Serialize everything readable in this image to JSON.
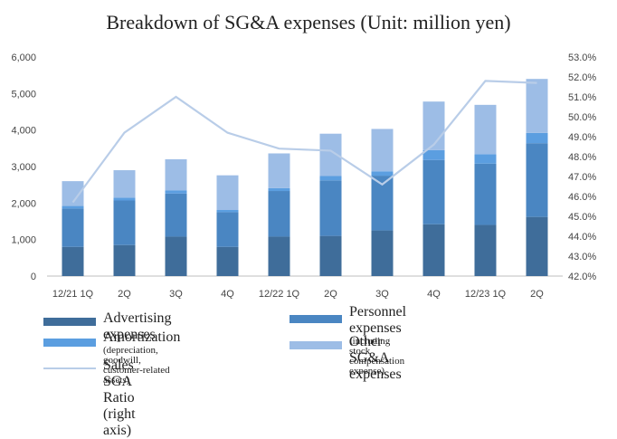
{
  "chart_data": {
    "type": "bar",
    "stacked": true,
    "title": "Breakdown of SG&A expenses (Unit: million yen)",
    "categories": [
      "12/21 1Q",
      "2Q",
      "3Q",
      "4Q",
      "12/22 1Q",
      "2Q",
      "3Q",
      "4Q",
      "12/23 1Q",
      "2Q"
    ],
    "y_ticks": [
      "0",
      "1,000",
      "2,000",
      "3,000",
      "4,000",
      "5,000",
      "6,000"
    ],
    "y2_ticks": [
      "42.0%",
      "43.0%",
      "44.0%",
      "45.0%",
      "46.0%",
      "47.0%",
      "48.0%",
      "49.0%",
      "50.0%",
      "51.0%",
      "52.0%",
      "53.0%"
    ],
    "ylim": [
      0,
      6000
    ],
    "y2lim": [
      42.0,
      53.0
    ],
    "series": [
      {
        "name": "Advertising expenses",
        "color": "#3f6d9a",
        "values": [
          800,
          850,
          1080,
          800,
          1080,
          1100,
          1250,
          1420,
          1400,
          1620
        ]
      },
      {
        "name": "Personnel expenses",
        "sub": "(including stock compensation expense)",
        "color": "#4a86c2",
        "values": [
          1050,
          1220,
          1180,
          950,
          1250,
          1520,
          1500,
          1760,
          1680,
          2020
        ]
      },
      {
        "name": "Amortization",
        "sub": "(depreciation, goodwill, customer-related assets)",
        "color": "#5b9ee0",
        "values": [
          70,
          80,
          90,
          60,
          80,
          120,
          120,
          270,
          260,
          280
        ]
      },
      {
        "name": "Other SG&A expenses",
        "color": "#9dbde6",
        "values": [
          680,
          750,
          850,
          950,
          950,
          1160,
          1160,
          1330,
          1350,
          1480
        ]
      }
    ],
    "line_series": {
      "name": "Sales SGA Ratio (right axis)",
      "axis": "right",
      "color": "#b9cde8",
      "values": [
        45.7,
        49.2,
        51.0,
        49.2,
        48.4,
        48.3,
        46.6,
        48.6,
        51.8,
        51.7
      ]
    },
    "legend": "bottom"
  }
}
